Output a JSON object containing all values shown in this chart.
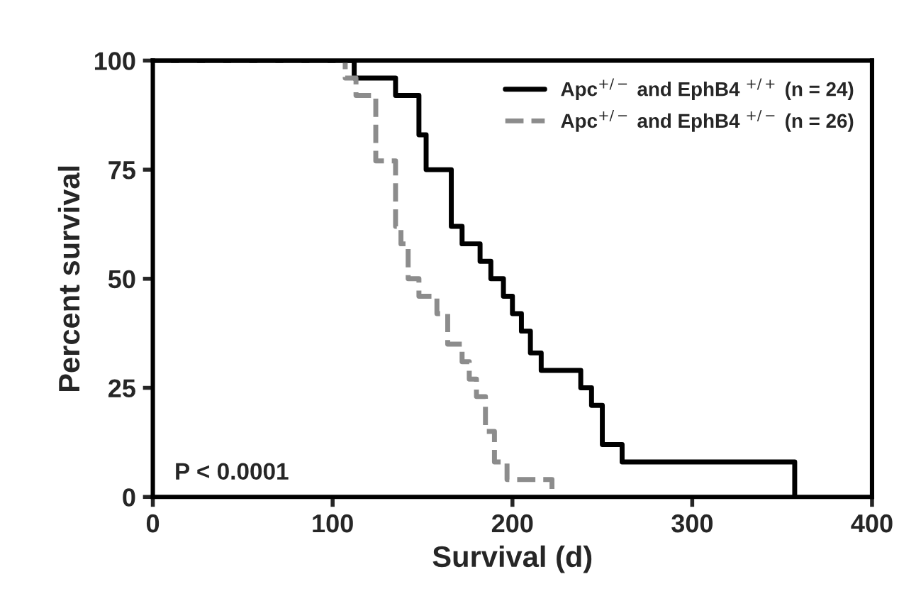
{
  "chart_data": {
    "type": "step",
    "xlabel": "Survival (d)",
    "ylabel": "Percent survival",
    "xlim": [
      0,
      400
    ],
    "xticks": [
      0,
      100,
      200,
      300,
      400
    ],
    "ylim": [
      0,
      100
    ],
    "yticks": [
      0,
      25,
      50,
      75,
      100
    ],
    "grid": false,
    "legend": "top right",
    "annotations": [
      "P < 0.0001"
    ],
    "series": [
      {
        "name": "Apc$^{+/−}$ and EphB4 $^{+/+}$ (n = 24)",
        "color": "#000000",
        "line_style": "solid",
        "x": [
          0,
          112,
          135,
          148,
          152,
          166,
          172,
          182,
          188,
          195,
          200,
          205,
          210,
          216,
          238,
          244,
          250,
          261,
          357
        ],
        "values": [
          100,
          96,
          92,
          83,
          75,
          62,
          58,
          54,
          50,
          46,
          42,
          38,
          33,
          29,
          25,
          21,
          12,
          8,
          0
        ]
      },
      {
        "name": "Apc$^{+/−}$ and EphB4 $^{+/−}$ (n = 26)",
        "color": "#8c8c8c",
        "line_style": "dashed",
        "x": [
          0,
          107,
          113,
          124,
          135,
          138,
          142,
          148,
          158,
          164,
          172,
          176,
          180,
          185,
          190,
          197,
          222
        ],
        "values": [
          100,
          96,
          92,
          77,
          62,
          58,
          50,
          46,
          42,
          35,
          31,
          27,
          23,
          15,
          8,
          4,
          0
        ]
      }
    ]
  }
}
